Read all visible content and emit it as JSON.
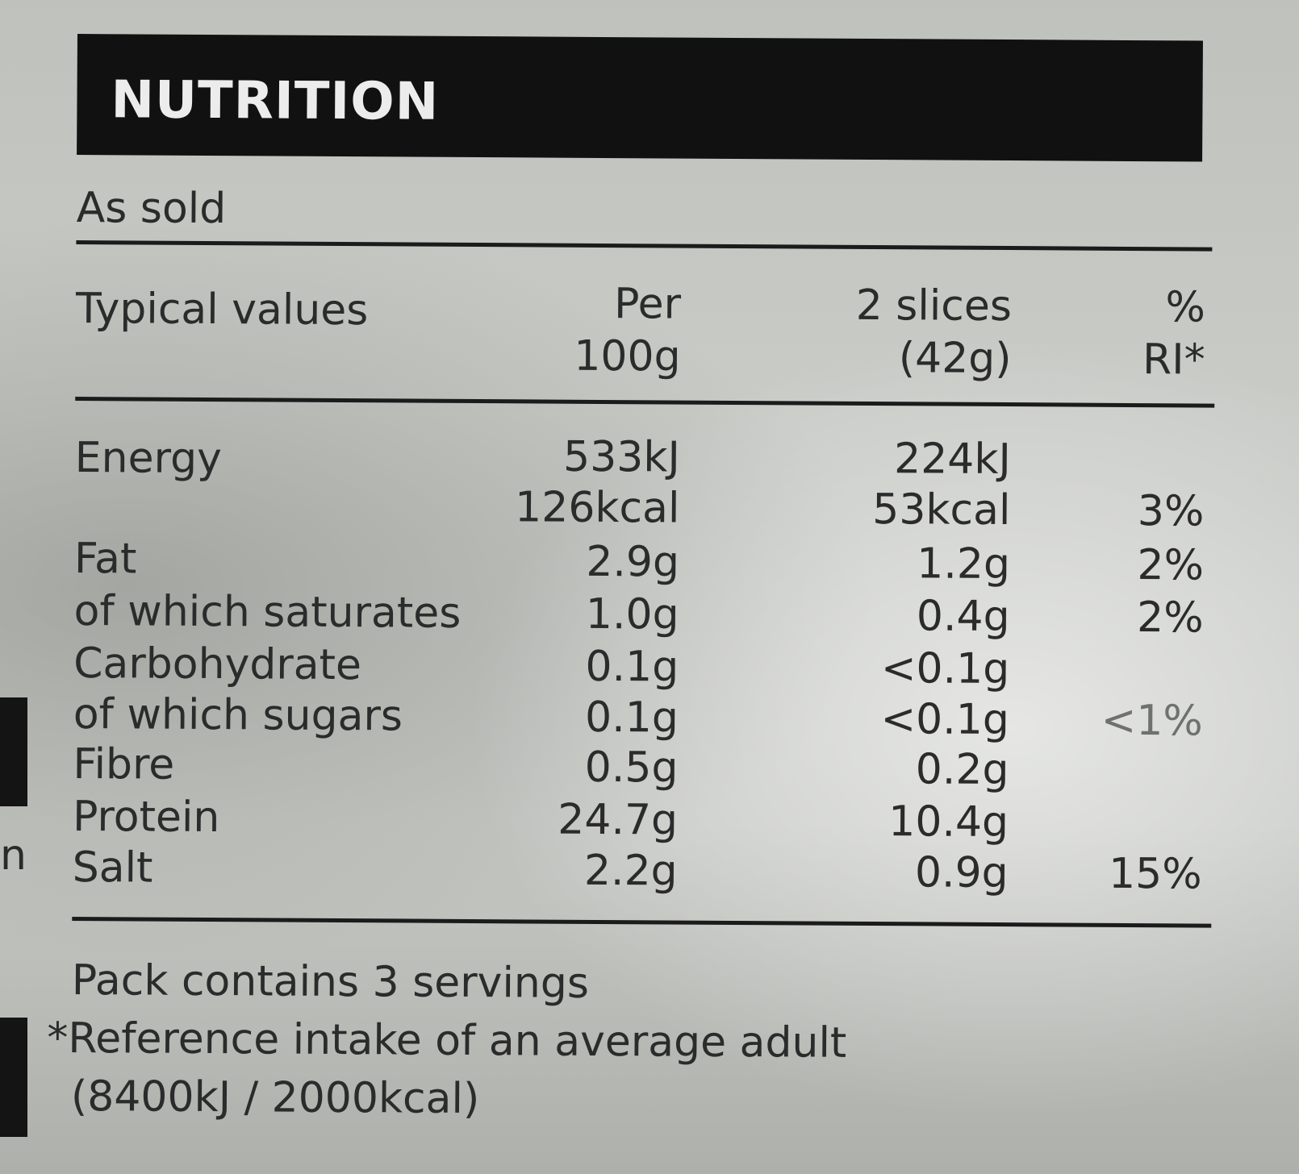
{
  "header": {
    "title": "NUTRITION"
  },
  "subheader": "As sold",
  "columns": {
    "label": "Typical values",
    "per100_line1": "Per",
    "per100_line2": "100g",
    "serving_line1": "2 slices",
    "serving_line2": "(42g)",
    "ri_line1": "%",
    "ri_line2": "RI*"
  },
  "rows": [
    {
      "name": "Energy",
      "per100": "533kJ",
      "serving": "224kJ",
      "ri": ""
    },
    {
      "name": "",
      "per100": "126kcal",
      "serving": "53kcal",
      "ri": "3%"
    },
    {
      "name": "Fat",
      "per100": "2.9g",
      "serving": "1.2g",
      "ri": "2%"
    },
    {
      "name": "of which saturates",
      "per100": "1.0g",
      "serving": "0.4g",
      "ri": "2%"
    },
    {
      "name": "Carbohydrate",
      "per100": "0.1g",
      "serving": "<0.1g",
      "ri": ""
    },
    {
      "name": "of which sugars",
      "per100": "0.1g",
      "serving": "<0.1g",
      "ri": "<1%"
    },
    {
      "name": "Fibre",
      "per100": "0.5g",
      "serving": "0.2g",
      "ri": ""
    },
    {
      "name": "Protein",
      "per100": "24.7g",
      "serving": "10.4g",
      "ri": ""
    },
    {
      "name": "Salt",
      "per100": "2.2g",
      "serving": "0.9g",
      "ri": "15%"
    }
  ],
  "footer": {
    "servings": "Pack contains 3 servings",
    "reference": "*Reference intake of an average adult",
    "reference_values": "(8400kJ / 2000kcal)"
  },
  "edge_letter": "n"
}
